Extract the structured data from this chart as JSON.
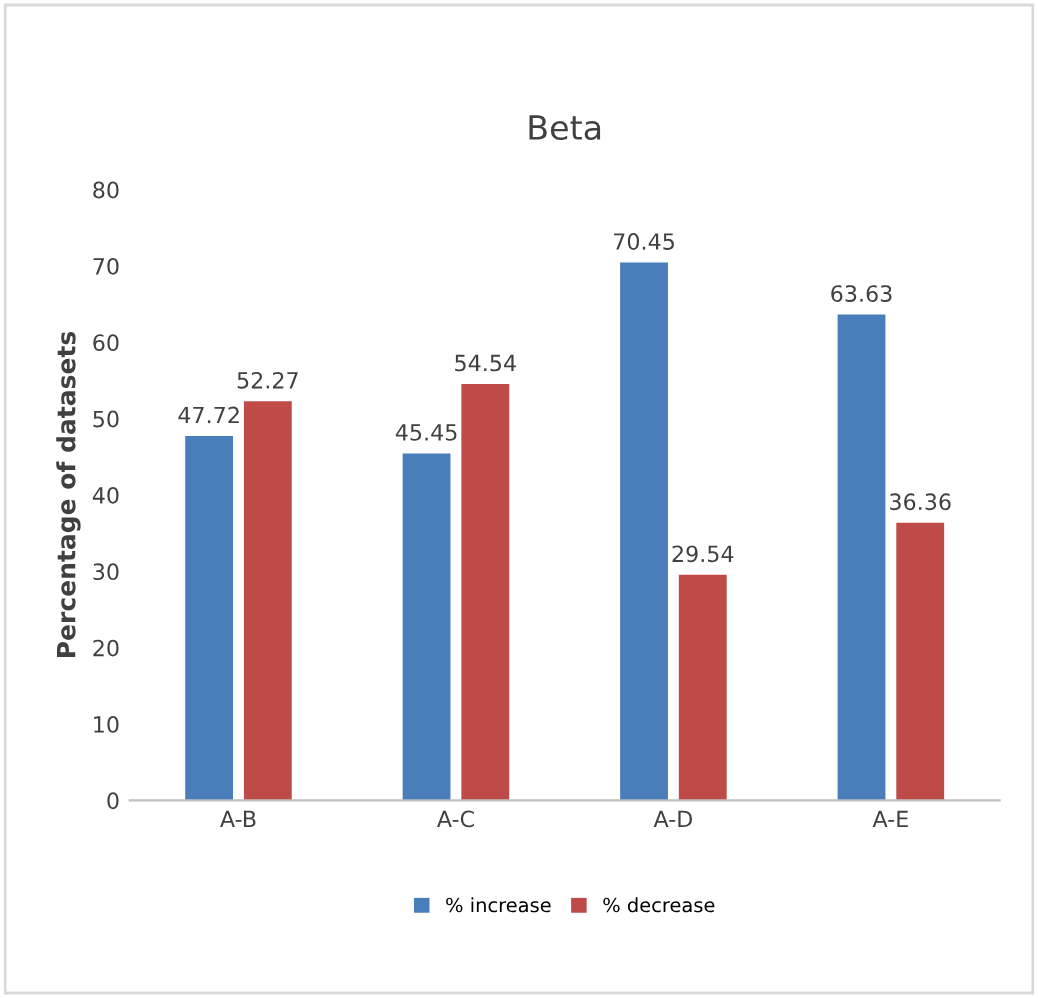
{
  "chart_data": {
    "type": "bar",
    "title": "Beta",
    "ylabel": "Percentage of datasets",
    "categories": [
      "A-B",
      "A-C",
      "A-D",
      "A-E"
    ],
    "series": [
      {
        "name": "% increase",
        "color": "#4a7ebb",
        "values": [
          47.72,
          45.45,
          70.45,
          63.63
        ]
      },
      {
        "name": "% decrease",
        "color": "#be4b48",
        "values": [
          52.27,
          54.54,
          29.54,
          36.36
        ]
      }
    ],
    "ylim": [
      0,
      80
    ],
    "yticks": [
      0,
      10,
      20,
      30,
      40,
      50,
      60,
      70,
      80
    ],
    "grid": false,
    "legend": "bottom",
    "data_labels": true
  }
}
